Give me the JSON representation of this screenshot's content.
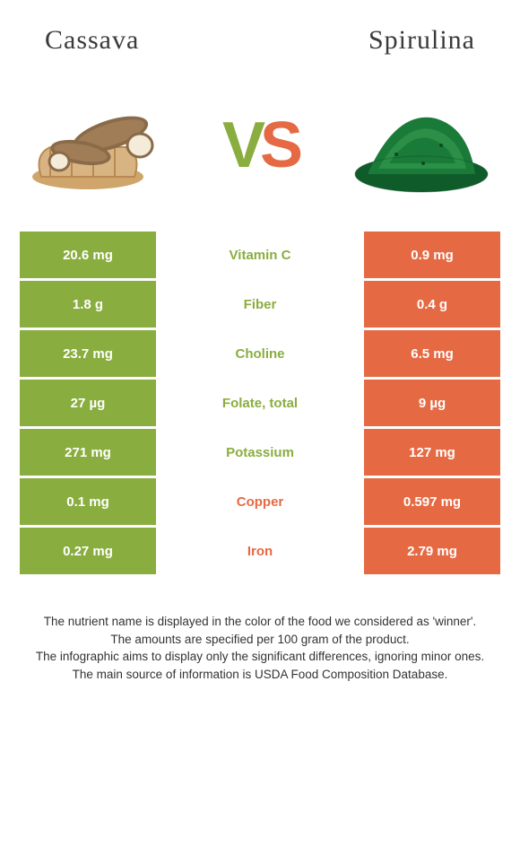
{
  "header": {
    "left_title": "Cassava",
    "right_title": "Spirulina"
  },
  "vs": {
    "v": "V",
    "s": "S"
  },
  "colors": {
    "left_bg": "#8aad3f",
    "right_bg": "#e56a44",
    "left_text": "#8aad3f",
    "right_text": "#e56a44",
    "white": "#ffffff"
  },
  "table": {
    "rows": [
      {
        "nutrient": "Vitamin C",
        "left": "20.6 mg",
        "right": "0.9 mg",
        "winner": "left"
      },
      {
        "nutrient": "Fiber",
        "left": "1.8 g",
        "right": "0.4 g",
        "winner": "left"
      },
      {
        "nutrient": "Choline",
        "left": "23.7 mg",
        "right": "6.5 mg",
        "winner": "left"
      },
      {
        "nutrient": "Folate, total",
        "left": "27 µg",
        "right": "9 µg",
        "winner": "left"
      },
      {
        "nutrient": "Potassium",
        "left": "271 mg",
        "right": "127 mg",
        "winner": "left"
      },
      {
        "nutrient": "Copper",
        "left": "0.1 mg",
        "right": "0.597 mg",
        "winner": "right"
      },
      {
        "nutrient": "Iron",
        "left": "0.27 mg",
        "right": "2.79 mg",
        "winner": "right"
      }
    ]
  },
  "footer": {
    "line1": "The nutrient name is displayed in the color of the food we considered as 'winner'.",
    "line2": "The amounts are specified per 100 gram of the product.",
    "line3": "The infographic aims to display only the significant differences, ignoring minor ones.",
    "line4": "The main source of information is USDA Food Composition Database."
  }
}
